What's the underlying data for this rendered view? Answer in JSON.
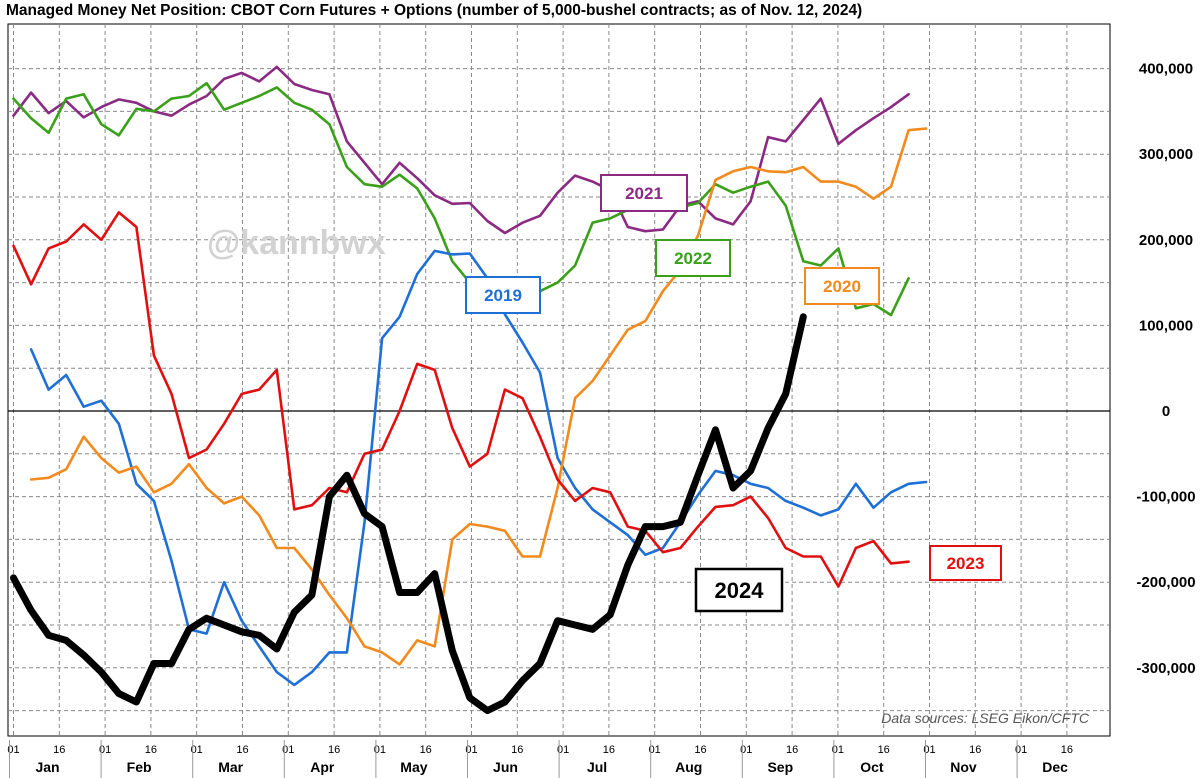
{
  "title": "Managed Money Net Position: CBOT Corn Futures + Options (number of 5,000-bushel contracts; as of Nov. 12, 2024)",
  "watermark": "@kannbwx",
  "source_note": "Data sources: LSEG Eikon/CFTC",
  "colors": {
    "2019": "#1e6fd6",
    "2020": "#f28a1e",
    "2021": "#8b2a82",
    "2022": "#3aa01a",
    "2023": "#e01010",
    "2024": "#000000",
    "grid": "#8a8a8a",
    "zero_line": "#000000"
  },
  "chart_data": {
    "type": "line",
    "title": "Managed Money Net Position: CBOT Corn Futures + Options (number of 5,000-bushel contracts; as of Nov. 12, 2024)",
    "xlabel": "",
    "ylabel": "",
    "x_unit": "week of year (1 = Jan 01)",
    "xlim": [
      1,
      53
    ],
    "ylim": [
      -360000,
      440000
    ],
    "y_ticks": [
      -300000,
      -200000,
      -100000,
      0,
      100000,
      200000,
      300000,
      400000
    ],
    "y_tick_labels": [
      "-300,000",
      "-200,000",
      "-100,000",
      "0",
      "100,000",
      "200,000",
      "300,000",
      "400,000"
    ],
    "x_day_ticks": [
      "01",
      "16",
      "01",
      "16",
      "01",
      "16",
      "01",
      "16",
      "01",
      "16",
      "01",
      "16",
      "01",
      "16",
      "01",
      "16",
      "01",
      "16",
      "01",
      "16",
      "01",
      "16",
      "01",
      "16"
    ],
    "x_months": [
      "Jan",
      "Feb",
      "Mar",
      "Apr",
      "May",
      "Jun",
      "Jul",
      "Aug",
      "Sep",
      "Oct",
      "Nov",
      "Dec"
    ],
    "grid": true,
    "y_axis_side": "right",
    "series": [
      {
        "name": "2019",
        "x": [
          2,
          3,
          4,
          5,
          6,
          7,
          8,
          9,
          10,
          11,
          12,
          13,
          14,
          15,
          16,
          17,
          18,
          19,
          20,
          21,
          22,
          23,
          24,
          25,
          26,
          27,
          28,
          29,
          30,
          31,
          32,
          33,
          34,
          35,
          36,
          37,
          38,
          39,
          40,
          41,
          42,
          43,
          44,
          45,
          46,
          47,
          48,
          49,
          50,
          51,
          52,
          53
        ],
        "values": [
          72000,
          25000,
          42000,
          5000,
          12000,
          -15000,
          -85000,
          -105000,
          -175000,
          -255000,
          -260000,
          -200000,
          -245000,
          -275000,
          -305000,
          -320000,
          -305000,
          -282000,
          -282000,
          -130000,
          85000,
          110000,
          160000,
          187000,
          183000,
          184000,
          155000,
          113000,
          80000,
          45000,
          -55000,
          -90000,
          -115000,
          -130000,
          -145000,
          -168000,
          -160000,
          -130000,
          -98000,
          -70000,
          -75000,
          -85000,
          -90000,
          -105000,
          -113000,
          -122000,
          -115000,
          -85000,
          -113000,
          -95000,
          -85000,
          -83000
        ]
      },
      {
        "name": "2020",
        "x": [
          2,
          3,
          4,
          5,
          6,
          7,
          8,
          9,
          10,
          11,
          12,
          13,
          14,
          15,
          16,
          17,
          18,
          19,
          20,
          21,
          22,
          23,
          24,
          25,
          26,
          27,
          28,
          29,
          30,
          31,
          32,
          33,
          34,
          35,
          36,
          37,
          38,
          39,
          40,
          41,
          42,
          43,
          44,
          45,
          46,
          47,
          48,
          49,
          50,
          51,
          52,
          53
        ],
        "values": [
          -80000,
          -78000,
          -68000,
          -30000,
          -55000,
          -72000,
          -65000,
          -95000,
          -85000,
          -62000,
          -90000,
          -108000,
          -100000,
          -122000,
          -160000,
          -160000,
          -185000,
          -215000,
          -242000,
          -275000,
          -282000,
          -296000,
          -268000,
          -275000,
          -150000,
          -132000,
          -135000,
          -140000,
          -170000,
          -170000,
          -90000,
          15000,
          35000,
          65000,
          95000,
          105000,
          140000,
          165000,
          205000,
          270000,
          280000,
          285000,
          280000,
          279000,
          285000,
          268000,
          268000,
          262000,
          248000,
          262000,
          328000,
          330000
        ]
      },
      {
        "name": "2021",
        "x": [
          1,
          2,
          3,
          4,
          5,
          6,
          7,
          8,
          9,
          10,
          11,
          12,
          13,
          14,
          15,
          16,
          17,
          18,
          19,
          20,
          21,
          22,
          23,
          24,
          25,
          26,
          27,
          28,
          29,
          30,
          31,
          32,
          33,
          34,
          35,
          36,
          37,
          38,
          39,
          40,
          41,
          42,
          43,
          44,
          45,
          46,
          47,
          48,
          49,
          50,
          51,
          52
        ],
        "values": [
          345000,
          372000,
          348000,
          362000,
          343000,
          355000,
          364000,
          360000,
          350000,
          345000,
          358000,
          368000,
          388000,
          395000,
          385000,
          402000,
          382000,
          375000,
          370000,
          315000,
          290000,
          265000,
          290000,
          272000,
          252000,
          242000,
          243000,
          222000,
          208000,
          220000,
          228000,
          255000,
          275000,
          268000,
          258000,
          215000,
          210000,
          212000,
          240000,
          245000,
          225000,
          218000,
          245000,
          320000,
          315000,
          340000,
          365000,
          312000,
          328000,
          342000,
          355000,
          370000
        ]
      },
      {
        "name": "2022",
        "x": [
          1,
          2,
          3,
          4,
          5,
          6,
          7,
          8,
          9,
          10,
          11,
          12,
          13,
          14,
          15,
          16,
          17,
          18,
          19,
          20,
          21,
          22,
          23,
          24,
          25,
          26,
          27,
          28,
          29,
          30,
          31,
          32,
          33,
          34,
          35,
          36,
          37,
          38,
          39,
          40,
          41,
          42,
          43,
          44,
          45,
          46,
          47,
          48,
          49,
          50,
          51,
          52
        ],
        "values": [
          365000,
          342000,
          325000,
          365000,
          370000,
          335000,
          322000,
          353000,
          350000,
          365000,
          368000,
          383000,
          352000,
          360000,
          368000,
          378000,
          360000,
          352000,
          335000,
          285000,
          265000,
          262000,
          276000,
          260000,
          225000,
          175000,
          150000,
          125000,
          120000,
          130000,
          140000,
          150000,
          170000,
          220000,
          225000,
          235000,
          242000,
          235000,
          238000,
          243000,
          265000,
          255000,
          262000,
          268000,
          240000,
          175000,
          170000,
          190000,
          120000,
          125000,
          112000,
          155000
        ]
      },
      {
        "name": "2023",
        "x": [
          1,
          2,
          3,
          4,
          5,
          6,
          7,
          8,
          9,
          10,
          11,
          12,
          13,
          14,
          15,
          16,
          17,
          18,
          19,
          20,
          21,
          22,
          23,
          24,
          25,
          26,
          27,
          28,
          29,
          30,
          31,
          32,
          33,
          34,
          35,
          36,
          37,
          38,
          39,
          40,
          41,
          42,
          43,
          44,
          45,
          46,
          47,
          48,
          49,
          50,
          51,
          52
        ],
        "values": [
          193000,
          148000,
          190000,
          198000,
          218000,
          200000,
          232000,
          215000,
          65000,
          20000,
          -55000,
          -45000,
          -15000,
          20000,
          25000,
          48000,
          -115000,
          -110000,
          -90000,
          -95000,
          -50000,
          -45000,
          0,
          55000,
          48000,
          -20000,
          -65000,
          -50000,
          25000,
          15000,
          -30000,
          -80000,
          -105000,
          -90000,
          -95000,
          -135000,
          -140000,
          -165000,
          -160000,
          -135000,
          -112000,
          -110000,
          -100000,
          -125000,
          -160000,
          -170000,
          -170000,
          -205000,
          -160000,
          -152000,
          -178000,
          -176000
        ]
      },
      {
        "name": "2024",
        "x": [
          1,
          2,
          3,
          4,
          5,
          6,
          7,
          8,
          9,
          10,
          11,
          12,
          13,
          14,
          15,
          16,
          17,
          18,
          19,
          20,
          21,
          22,
          23,
          24,
          25,
          26,
          27,
          28,
          29,
          30,
          31,
          32,
          33,
          34,
          35,
          36,
          37,
          38,
          39,
          40,
          41,
          42,
          43,
          44,
          45,
          46
        ],
        "values": [
          -195000,
          -233000,
          -262000,
          -268000,
          -285000,
          -305000,
          -330000,
          -340000,
          -295000,
          -295000,
          -255000,
          -242000,
          -250000,
          -258000,
          -262000,
          -278000,
          -235000,
          -215000,
          -100000,
          -75000,
          -120000,
          -135000,
          -212000,
          -212000,
          -190000,
          -280000,
          -335000,
          -350000,
          -340000,
          -315000,
          -295000,
          -245000,
          -250000,
          -255000,
          -238000,
          -180000,
          -135000,
          -135000,
          -130000,
          -75000,
          -22000,
          -90000,
          -70000,
          -20000,
          20000,
          110000
        ]
      }
    ],
    "series_labels": [
      "2019",
      "2020",
      "2021",
      "2022",
      "2023",
      "2024"
    ]
  }
}
